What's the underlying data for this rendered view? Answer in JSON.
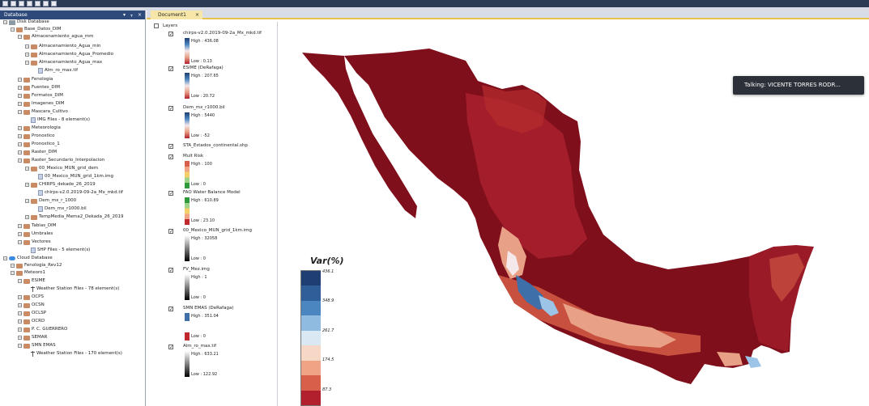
{
  "window": {
    "database_panel_title": "Database",
    "panel_controls": [
      "▾",
      "ᚁ",
      "×"
    ],
    "document_tab": "Document1",
    "document_tab_close": "×"
  },
  "tree": [
    {
      "label": "Disk Database",
      "icon": "disk"
    },
    {
      "label": "Base_Datos_DIM",
      "icon": "folder"
    },
    {
      "label": "Almacenamiento_agua_mm",
      "icon": "folder"
    },
    {
      "label": "Almacenamiento_Agua_min",
      "icon": "folder"
    },
    {
      "label": "Almacenamiento_Agua_Promedio",
      "icon": "folder"
    },
    {
      "label": "Almacenamiento_Agua_max",
      "icon": "folder"
    },
    {
      "label": "Alm_ro_max.tif",
      "icon": "file"
    },
    {
      "label": "Fenologia",
      "icon": "folder"
    },
    {
      "label": "Fuentes_DIM",
      "icon": "folder"
    },
    {
      "label": "Formatos_DIM",
      "icon": "folder"
    },
    {
      "label": "Imagenes_DIM",
      "icon": "folder"
    },
    {
      "label": "Mascara_Cultivo",
      "icon": "folder"
    },
    {
      "label": "IMG Files - 8 element(s)",
      "icon": "file"
    },
    {
      "label": "Meteorologia",
      "icon": "folder"
    },
    {
      "label": "Pronostico",
      "icon": "folder"
    },
    {
      "label": "Pronostico_1",
      "icon": "folder"
    },
    {
      "label": "Raster_DIM",
      "icon": "folder"
    },
    {
      "label": "Raster_Secundario_Interpolacion",
      "icon": "folder"
    },
    {
      "label": "00_Mexico_MUN_grid_dem",
      "icon": "folder"
    },
    {
      "label": "00_Mexico_MUN_grid_1km.img",
      "icon": "file"
    },
    {
      "label": "CHIRPS_dekade_26_2019",
      "icon": "folder"
    },
    {
      "label": "chirps-v2.0.2019-09-2a_Mx_mkd.tif",
      "icon": "file"
    },
    {
      "label": "Dem_mx_r_1000",
      "icon": "folder"
    },
    {
      "label": "Dem_mx_r1000.bil",
      "icon": "file"
    },
    {
      "label": "TempMedia_Mema2_Dekada_26_2019",
      "icon": "folder"
    },
    {
      "label": "Tablas_DIM",
      "icon": "folder"
    },
    {
      "label": "Umbrales",
      "icon": "folder"
    },
    {
      "label": "Vectores",
      "icon": "folder"
    },
    {
      "label": "SHP Files - 5 element(s)",
      "icon": "file"
    },
    {
      "label": "Cloud Database",
      "icon": "cloud"
    },
    {
      "label": "Fenologia_Rev12",
      "icon": "folder"
    },
    {
      "label": "Meteoro1",
      "icon": "folder"
    },
    {
      "label": "ESIME",
      "icon": "folder"
    },
    {
      "label": "Weather Station Files - 78 element(s)",
      "icon": "antenna"
    },
    {
      "label": "OCPS",
      "icon": "folder"
    },
    {
      "label": "OCSN",
      "icon": "folder"
    },
    {
      "label": "OCLSP",
      "icon": "folder"
    },
    {
      "label": "OCRD",
      "icon": "folder"
    },
    {
      "label": "P. C. GUERRERO",
      "icon": "folder"
    },
    {
      "label": "SEMAR",
      "icon": "folder"
    },
    {
      "label": "SMN EMAS",
      "icon": "folder"
    },
    {
      "label": "Weather Station Files - 170 element(s)",
      "icon": "antenna"
    }
  ],
  "layers": {
    "root": "Layers",
    "items": [
      {
        "name": "chirps-v2.0.2019-09-2a_Mx_mkd.tif",
        "high": "High : 436.08",
        "low": "Low : 0.13"
      },
      {
        "name": "ESIME (DeRafaga)",
        "high": "High : 207.65",
        "low": "Low : 20.72"
      },
      {
        "name": "Dem_mx_r1000.bil",
        "high": "High : 5440",
        "low": "Low : -52"
      },
      {
        "name": "STA_Estados_continental.shp"
      },
      {
        "name": "Mult Risk",
        "high": "High : 100",
        "low": "Low : 0"
      },
      {
        "name": "FAO Water Balance Model",
        "high": "High : 610.89",
        "low": "Low : 23.10"
      },
      {
        "name": "00_Mexico_MUN_grid_1km.img",
        "high": "High : 32058",
        "low": "Low : 0"
      },
      {
        "name": "FV_Mez.img",
        "high": "High : 1",
        "low": "Low : 0"
      },
      {
        "name": "SMN EMAS (DeRafaga)",
        "high": "High : 351.04",
        "low": "Low : 0"
      },
      {
        "name": "Alm_ro_max.tif",
        "high": "High : 633.21",
        "low": "Low : 122.92"
      }
    ]
  },
  "legend": {
    "title": "Var(%)",
    "ticks": [
      "436.1",
      "348.9",
      "261.7",
      "174.5",
      "87.3"
    ],
    "colors": [
      "#1f3f73",
      "#2f5e98",
      "#4b86c0",
      "#8fbbe0",
      "#d9e8f3",
      "#f7d8c6",
      "#efa585",
      "#d8604a",
      "#b3202d"
    ]
  },
  "toast": {
    "text": "Talking: VICENTE TORRES RODR..."
  },
  "map_colors": {
    "base": "#800f1c",
    "mid": "#a31d2b",
    "light": "#c8503f",
    "pale": "#e8a086",
    "white": "#f4e8ea",
    "blue": "#3f6fa8",
    "lightblue": "#9cc4e6"
  }
}
